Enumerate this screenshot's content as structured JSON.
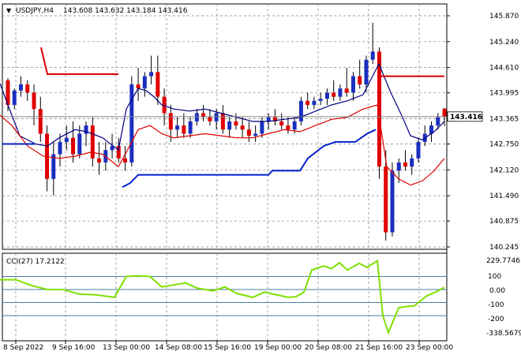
{
  "main_panel": {
    "menu_glyph": "▼",
    "symbol_header": "USDJPY,H4",
    "ohlc_header": "143.608 143.632 143.184 143.416",
    "current_price_label": "143.416",
    "price_labels": [
      "145.870",
      "145.240",
      "144.610",
      "143.995",
      "143.365",
      "142.750",
      "142.120",
      "141.490",
      "140.875",
      "140.245"
    ]
  },
  "cci_panel": {
    "header": "CCI(27) 17.2122",
    "labels": [
      "229.7746",
      "100",
      "0.00",
      "-100",
      "-200",
      "-338.5679"
    ]
  },
  "time_axis": {
    "labels": [
      "8 Sep 2022",
      "9 Sep 16:00",
      "13 Sep 00:00",
      "14 Sep 08:00",
      "15 Sep 16:00",
      "19 Sep 00:00",
      "20 Sep 08:00",
      "21 Sep 16:00",
      "23 Sep 00:00"
    ]
  },
  "colors": {
    "background": "#ffffff",
    "grid": "#808080",
    "bull_candle": "#1a2fc0",
    "bear_candle": "#e00000",
    "ma_fast": "#dd0000",
    "ma_slow": "#000080",
    "stop_line_red": "#dd0000",
    "stop_line_blue": "#0022cc",
    "cci_line": "#7fe000",
    "cci_level": "#4a7fa0"
  },
  "chart_data": {
    "type": "candlestick",
    "price_range": [
      140.245,
      145.87
    ],
    "cci_range": [
      -338.5679,
      229.7746
    ],
    "cci_levels": [
      100,
      0,
      -100,
      -200
    ],
    "candles": [
      [
        144.3,
        144.35,
        143.55,
        143.7
      ],
      [
        143.7,
        144.1,
        143.6,
        144.05
      ],
      [
        144.05,
        144.4,
        143.9,
        144.2
      ],
      [
        144.2,
        144.3,
        143.8,
        144.0
      ],
      [
        144.0,
        144.2,
        143.2,
        143.6
      ],
      [
        143.6,
        143.9,
        142.8,
        143.0
      ],
      [
        143.0,
        143.2,
        141.6,
        141.9
      ],
      [
        141.9,
        142.8,
        141.5,
        142.5
      ],
      [
        142.5,
        143.0,
        142.2,
        142.8
      ],
      [
        142.8,
        143.2,
        142.6,
        142.9
      ],
      [
        142.9,
        143.3,
        142.3,
        142.5
      ],
      [
        142.5,
        143.2,
        142.4,
        143.0
      ],
      [
        143.0,
        143.3,
        142.7,
        143.2
      ],
      [
        143.2,
        143.4,
        142.2,
        142.4
      ],
      [
        142.4,
        142.8,
        142.0,
        142.3
      ],
      [
        142.3,
        142.8,
        142.1,
        142.6
      ],
      [
        142.6,
        143.0,
        142.4,
        142.7
      ],
      [
        142.7,
        142.9,
        142.3,
        142.4
      ],
      [
        142.4,
        142.7,
        142.1,
        142.3
      ],
      [
        142.3,
        144.4,
        142.2,
        144.2
      ],
      [
        144.2,
        144.6,
        143.8,
        144.1
      ],
      [
        144.1,
        144.5,
        143.9,
        144.4
      ],
      [
        144.4,
        144.9,
        144.2,
        144.5
      ],
      [
        144.5,
        144.9,
        143.7,
        143.9
      ],
      [
        143.9,
        144.1,
        143.2,
        143.5
      ],
      [
        143.5,
        143.7,
        142.8,
        143.1
      ],
      [
        143.1,
        143.4,
        142.9,
        143.2
      ],
      [
        143.2,
        143.5,
        142.9,
        143.0
      ],
      [
        143.0,
        143.4,
        142.9,
        143.3
      ],
      [
        143.3,
        143.6,
        143.2,
        143.5
      ],
      [
        143.5,
        143.7,
        143.3,
        143.4
      ],
      [
        143.4,
        143.6,
        143.2,
        143.3
      ],
      [
        143.3,
        143.6,
        143.1,
        143.5
      ],
      [
        143.5,
        143.7,
        143.0,
        143.1
      ],
      [
        143.1,
        143.4,
        142.9,
        143.3
      ],
      [
        143.3,
        143.5,
        143.1,
        143.2
      ],
      [
        143.2,
        143.4,
        142.9,
        143.1
      ],
      [
        143.1,
        143.3,
        142.8,
        142.95
      ],
      [
        142.95,
        143.2,
        142.8,
        143.0
      ],
      [
        143.0,
        143.4,
        142.9,
        143.3
      ],
      [
        143.3,
        143.5,
        143.1,
        143.4
      ],
      [
        143.4,
        143.6,
        143.2,
        143.3
      ],
      [
        143.3,
        143.5,
        143.1,
        143.2
      ],
      [
        143.2,
        143.4,
        143.0,
        143.1
      ],
      [
        143.1,
        143.4,
        143.0,
        143.3
      ],
      [
        143.3,
        143.9,
        143.2,
        143.8
      ],
      [
        143.8,
        144.0,
        143.6,
        143.7
      ],
      [
        143.7,
        143.9,
        143.6,
        143.8
      ],
      [
        143.8,
        144.0,
        143.7,
        143.85
      ],
      [
        143.85,
        144.1,
        143.7,
        144.0
      ],
      [
        144.0,
        144.3,
        143.8,
        143.9
      ],
      [
        143.9,
        144.2,
        143.8,
        144.1
      ],
      [
        144.1,
        144.6,
        143.9,
        144.0
      ],
      [
        144.0,
        144.5,
        143.8,
        144.4
      ],
      [
        144.4,
        144.8,
        144.1,
        144.2
      ],
      [
        144.2,
        144.9,
        144.0,
        144.8
      ],
      [
        144.8,
        145.7,
        144.7,
        145.0
      ],
      [
        145.0,
        145.1,
        141.9,
        142.2
      ],
      [
        142.2,
        142.6,
        140.4,
        140.6
      ],
      [
        140.6,
        142.3,
        140.5,
        142.1
      ],
      [
        142.1,
        142.4,
        141.8,
        142.3
      ],
      [
        142.3,
        142.6,
        142.1,
        142.2
      ],
      [
        142.2,
        142.5,
        142.0,
        142.4
      ],
      [
        142.4,
        142.9,
        142.3,
        142.8
      ],
      [
        142.8,
        143.2,
        142.7,
        143.0
      ],
      [
        143.0,
        143.3,
        142.8,
        143.2
      ],
      [
        143.2,
        143.5,
        143.1,
        143.4
      ],
      [
        143.608,
        143.632,
        143.184,
        143.416
      ]
    ],
    "ma_slow": [
      [
        0,
        144.22
      ],
      [
        10,
        143.7
      ],
      [
        25,
        142.95
      ],
      [
        45,
        142.75
      ],
      [
        60,
        142.7
      ],
      [
        75,
        142.9
      ],
      [
        95,
        143.1
      ],
      [
        110,
        143.05
      ],
      [
        130,
        142.9
      ],
      [
        150,
        142.6
      ],
      [
        160,
        143.6
      ],
      [
        175,
        144.1
      ],
      [
        185,
        144.05
      ],
      [
        195,
        143.9
      ],
      [
        205,
        143.7
      ],
      [
        220,
        143.6
      ],
      [
        240,
        143.55
      ],
      [
        260,
        143.6
      ],
      [
        280,
        143.5
      ],
      [
        300,
        143.4
      ],
      [
        320,
        143.3
      ],
      [
        340,
        143.3
      ],
      [
        360,
        143.35
      ],
      [
        380,
        143.4
      ],
      [
        400,
        143.55
      ],
      [
        420,
        143.7
      ],
      [
        440,
        143.8
      ],
      [
        460,
        143.95
      ],
      [
        480,
        144.7
      ],
      [
        495,
        144.0
      ],
      [
        510,
        143.4
      ],
      [
        520,
        142.95
      ],
      [
        535,
        142.85
      ],
      [
        550,
        143.05
      ],
      [
        563,
        143.3
      ]
    ],
    "ma_fast": [
      [
        0,
        143.45
      ],
      [
        15,
        143.2
      ],
      [
        35,
        142.7
      ],
      [
        55,
        142.45
      ],
      [
        75,
        142.4
      ],
      [
        95,
        142.45
      ],
      [
        115,
        142.55
      ],
      [
        130,
        142.5
      ],
      [
        150,
        142.2
      ],
      [
        160,
        142.55
      ],
      [
        175,
        143.1
      ],
      [
        190,
        143.2
      ],
      [
        205,
        143.0
      ],
      [
        220,
        142.9
      ],
      [
        240,
        142.95
      ],
      [
        260,
        143.0
      ],
      [
        280,
        142.95
      ],
      [
        300,
        142.9
      ],
      [
        320,
        142.9
      ],
      [
        340,
        143.0
      ],
      [
        360,
        143.1
      ],
      [
        380,
        143.05
      ],
      [
        400,
        143.2
      ],
      [
        420,
        143.35
      ],
      [
        440,
        143.4
      ],
      [
        460,
        143.6
      ],
      [
        478,
        143.7
      ],
      [
        490,
        142.2
      ],
      [
        505,
        141.9
      ],
      [
        520,
        141.75
      ],
      [
        535,
        141.85
      ],
      [
        550,
        142.1
      ],
      [
        563,
        142.4
      ]
    ],
    "stop_red": [
      [
        [
          52,
          145.1
        ],
        [
          60,
          144.45
        ],
        [
          150,
          144.45
        ]
      ],
      [
        [
          482,
          144.4
        ],
        [
          563,
          144.4
        ]
      ]
    ],
    "stop_blue": [
      [
        [
          3,
          142.75
        ],
        [
          44,
          142.75
        ]
      ],
      [
        [
          155,
          141.7
        ],
        [
          165,
          141.8
        ],
        [
          175,
          142.0
        ],
        [
          185,
          142.0
        ],
        [
          340,
          142.0
        ],
        [
          345,
          142.1
        ],
        [
          380,
          142.1
        ],
        [
          390,
          142.4
        ],
        [
          410,
          142.7
        ],
        [
          425,
          142.8
        ],
        [
          450,
          142.8
        ],
        [
          465,
          143.0
        ],
        [
          476,
          143.1
        ]
      ]
    ],
    "cci": [
      [
        0,
        75
      ],
      [
        20,
        75
      ],
      [
        40,
        30
      ],
      [
        60,
        0
      ],
      [
        80,
        0
      ],
      [
        100,
        -35
      ],
      [
        120,
        -40
      ],
      [
        145,
        -60
      ],
      [
        160,
        100
      ],
      [
        175,
        105
      ],
      [
        190,
        100
      ],
      [
        205,
        20
      ],
      [
        220,
        35
      ],
      [
        235,
        50
      ],
      [
        250,
        10
      ],
      [
        270,
        -10
      ],
      [
        285,
        20
      ],
      [
        300,
        -30
      ],
      [
        320,
        -60
      ],
      [
        335,
        -20
      ],
      [
        350,
        -40
      ],
      [
        365,
        -60
      ],
      [
        375,
        -55
      ],
      [
        385,
        -20
      ],
      [
        395,
        150
      ],
      [
        410,
        180
      ],
      [
        420,
        160
      ],
      [
        430,
        205
      ],
      [
        440,
        150
      ],
      [
        455,
        200
      ],
      [
        465,
        170
      ],
      [
        478,
        220
      ],
      [
        485,
        -200
      ],
      [
        492,
        -330
      ],
      [
        505,
        -140
      ],
      [
        515,
        -130
      ],
      [
        525,
        -125
      ],
      [
        540,
        -50
      ],
      [
        555,
        -10
      ],
      [
        563,
        17
      ]
    ]
  }
}
